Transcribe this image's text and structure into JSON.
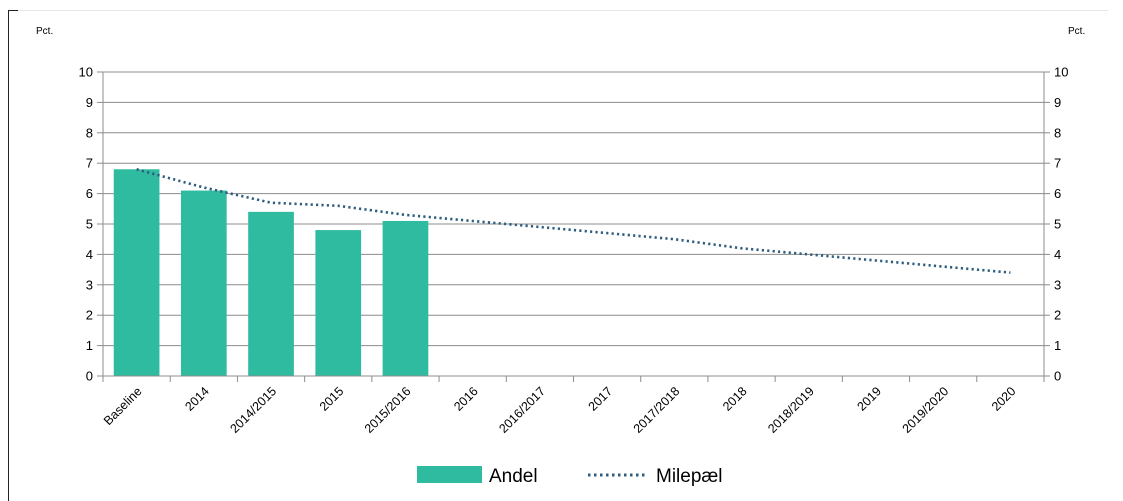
{
  "chart_data": {
    "type": "bar",
    "left_unit": "Pct.",
    "right_unit": "Pct.",
    "ylim": [
      0,
      10
    ],
    "y_ticks": [
      "0",
      "1",
      "2",
      "3",
      "4",
      "5",
      "6",
      "7",
      "8",
      "9",
      "10"
    ],
    "categories": [
      "Baseline",
      "2014",
      "2014/2015",
      "2015",
      "2015/2016",
      "2016",
      "2016/2017",
      "2017",
      "2017/2018",
      "2018",
      "2018/2019",
      "2019",
      "2019/2020",
      "2020"
    ],
    "series": [
      {
        "name": "Andel",
        "kind": "bar",
        "color": "#2fbba0",
        "values": [
          6.8,
          6.1,
          5.4,
          4.8,
          5.1,
          null,
          null,
          null,
          null,
          null,
          null,
          null,
          null,
          null
        ]
      },
      {
        "name": "Milepæl",
        "kind": "line",
        "style": "dotted",
        "color": "#2e5d80",
        "values": [
          6.8,
          6.2,
          5.7,
          5.6,
          5.3,
          5.1,
          4.9,
          4.7,
          4.5,
          4.2,
          4.0,
          3.8,
          3.6,
          3.4
        ]
      }
    ],
    "grid": true,
    "legend_position": "bottom"
  }
}
